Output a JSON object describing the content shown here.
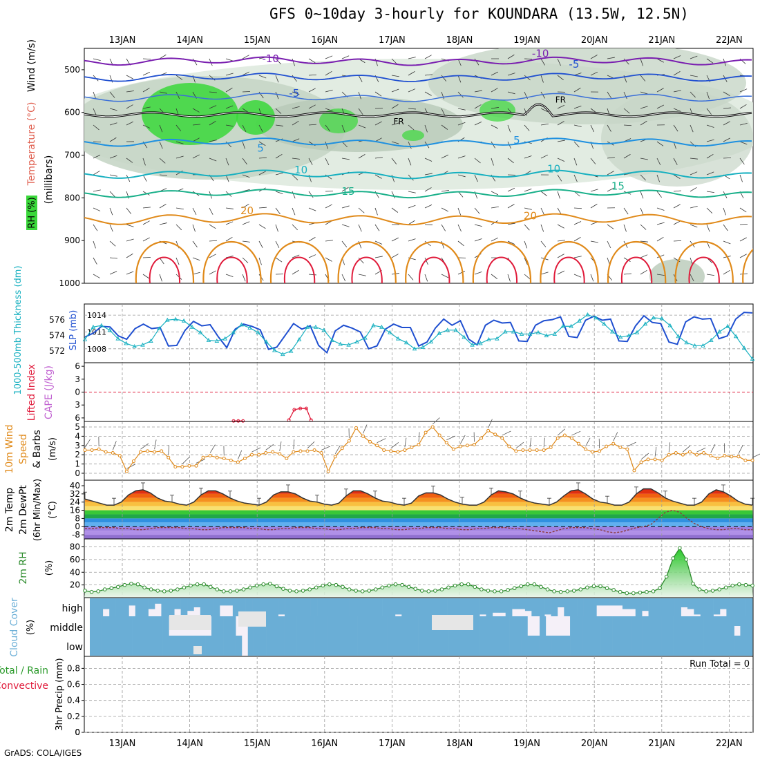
{
  "title": "GFS 0~10day 3-hourly for KOUNDARA (13.5W, 12.5N)",
  "footer": "GrADS: COLA/IGES",
  "colors": {
    "frame": "#000000",
    "grid": "#9a9a9a",
    "purple": "#7a1fb0",
    "blue": "#1f4fd0",
    "lightblue": "#1e90e0",
    "cyan": "#17b0c0",
    "teal": "#1ab08a",
    "orange": "#e08a1a",
    "red": "#e01a3a",
    "rh_green": "#3ad83a",
    "cloud": "#6aaed6",
    "cloud_none": "#f5f0f8"
  },
  "chart_data": [
    {
      "id": "upper_air",
      "type": "heatmap",
      "ylabel_parts": [
        "Temperature (°C)",
        "Wind (m/s)",
        "RH (%)"
      ],
      "ylabel_sub": "(millibars)",
      "x_dates": [
        "13JAN",
        "14JAN",
        "15JAN",
        "16JAN",
        "17JAN",
        "18JAN",
        "19JAN",
        "20JAN",
        "21JAN",
        "22JAN"
      ],
      "y_ticks": [
        500,
        600,
        700,
        800,
        900,
        1000
      ],
      "ylim": [
        450,
        1000
      ],
      "isotherm_labels": [
        {
          "label": "-10",
          "day": 2.2,
          "p": 482
        },
        {
          "label": "-10",
          "day": 6.2,
          "p": 470
        },
        {
          "label": "-5",
          "day": 2.55,
          "p": 563
        },
        {
          "label": "-5",
          "day": 6.7,
          "p": 495
        },
        {
          "label": "FR",
          "day": 4.1,
          "p": 628
        },
        {
          "label": "FR",
          "day": 6.5,
          "p": 577
        },
        {
          "label": "5",
          "day": 2.05,
          "p": 692
        },
        {
          "label": "5",
          "day": 5.85,
          "p": 673
        },
        {
          "label": "10",
          "day": 2.65,
          "p": 743
        },
        {
          "label": "10",
          "day": 6.4,
          "p": 740
        },
        {
          "label": "15",
          "day": 3.35,
          "p": 793
        },
        {
          "label": "15",
          "day": 7.35,
          "p": 781
        },
        {
          "label": "20",
          "day": 1.85,
          "p": 838
        },
        {
          "label": "20",
          "day": 6.05,
          "p": 850
        }
      ]
    },
    {
      "id": "slp_thickness",
      "type": "line",
      "ylabel_left": "1000-500mb Thickness (dm)",
      "ylabel_right": "SLP (mb)",
      "thickness_ticks": [
        572,
        574,
        576
      ],
      "slp_ticks": [
        1008,
        1011,
        1014
      ],
      "series": [
        {
          "name": "SLP (mb)",
          "values": [
            1010.1,
            1010.8,
            1012.0,
            1011.9,
            1010.3,
            1009.7,
            1011.6,
            1012.4,
            1011.6,
            1011.8,
            1008.5,
            1008.6,
            1011.3,
            1012.9,
            1012.1,
            1012.3,
            1010.1,
            1008.2,
            1011.5,
            1012.4,
            1012.0,
            1011.4,
            1007.9,
            1008.3,
            1010.4,
            1012.5,
            1011.5,
            1012.1,
            1008.6,
            1007.3,
            1011.2,
            1012.2,
            1011.7,
            1011.0,
            1008.0,
            1008.5,
            1011.5,
            1012.4,
            1011.8,
            1011.8,
            1008.5,
            1009.2,
            1011.7,
            1013.3,
            1012.2,
            1013.0,
            1009.7,
            1008.7,
            1012.2,
            1013.1,
            1012.6,
            1012.7,
            1009.4,
            1009.3,
            1012.2,
            1013.0,
            1013.2,
            1013.7,
            1010.2,
            1010.0,
            1013.1,
            1013.8,
            1013.1,
            1013.3,
            1009.4,
            1009.3,
            1012.1,
            1013.9,
            1012.7,
            1012.5,
            1009.2,
            1008.8,
            1012.8,
            1013.7,
            1013.3,
            1013.4,
            1009.8,
            1010.3,
            1013.3,
            1014.5,
            1014.4
          ]
        },
        {
          "name": "Thickness (dm)",
          "values": [
            573.5,
            575.1,
            575.3,
            574.7,
            573.6,
            573.0,
            572.6,
            572.8,
            573.3,
            574.9,
            576.0,
            576.1,
            575.9,
            575.1,
            574.4,
            573.4,
            573.3,
            573.6,
            574.4,
            575.4,
            575.0,
            574.4,
            573.2,
            572.1,
            571.6,
            572.0,
            573.5,
            575.1,
            575.1,
            574.7,
            573.4,
            572.9,
            572.8,
            573.2,
            573.7,
            575.3,
            575.1,
            574.4,
            573.6,
            573.1,
            572.3,
            572.5,
            573.2,
            574.3,
            574.7,
            574.7,
            573.8,
            572.8,
            573.0,
            573.5,
            573.6,
            574.5,
            574.5,
            574.2,
            574.2,
            574.4,
            574.0,
            574.2,
            575.2,
            575.2,
            575.9,
            576.7,
            576.3,
            575.5,
            574.5,
            573.8,
            574.0,
            574.4,
            575.5,
            576.3,
            576.2,
            575.3,
            573.9,
            573.1,
            572.7,
            572.7,
            573.4,
            574.5,
            575.2,
            573.9,
            572.4,
            571.0
          ]
        }
      ]
    },
    {
      "id": "instability",
      "type": "line",
      "ylabel_left": "Lifted Index",
      "ylabel_right": "CAPE (J/kg)",
      "ticks": [
        6,
        3,
        0,
        -3,
        -6
      ],
      "series": [
        {
          "name": "Lifted Index",
          "segments": [
            [
              [
                1.65,
                6.7
              ],
              [
                1.72,
                6.7
              ],
              [
                1.79,
                6.7
              ]
            ],
            [
              [
                2.47,
                6.5
              ],
              [
                2.55,
                4.1
              ],
              [
                2.64,
                3.8
              ],
              [
                2.73,
                3.8
              ],
              [
                2.8,
                6.5
              ]
            ]
          ]
        }
      ]
    },
    {
      "id": "wind10m",
      "type": "line",
      "ylabel_left": "10m Wind",
      "ylabel_mid": "Speed",
      "ylabel_right": "& Barbs",
      "ylabel_unit": "(m/s)",
      "y_ticks": [
        0,
        1,
        2,
        3,
        4,
        5
      ],
      "series": [
        {
          "name": "Speed (m/s)",
          "values": [
            2.5,
            2.5,
            2.6,
            2.3,
            2.2,
            1.9,
            0.2,
            1.3,
            2.3,
            2.4,
            2.3,
            2.4,
            1.7,
            0.7,
            0.7,
            0.8,
            0.8,
            1.7,
            1.9,
            1.7,
            1.6,
            1.4,
            1.2,
            1.6,
            2.0,
            2.0,
            2.2,
            2.3,
            2.1,
            1.6,
            2.3,
            2.4,
            2.4,
            2.5,
            2.2,
            0.2,
            1.8,
            2.7,
            3.5,
            4.9,
            4.0,
            3.4,
            3.0,
            2.5,
            2.4,
            2.3,
            2.5,
            2.8,
            3.1,
            4.4,
            5.0,
            4.1,
            3.3,
            2.6,
            2.9,
            3.0,
            3.1,
            3.8,
            4.6,
            4.2,
            3.8,
            2.9,
            2.4,
            2.5,
            2.5,
            2.5,
            2.5,
            2.8,
            3.8,
            4.1,
            3.8,
            3.2,
            2.6,
            2.3,
            2.4,
            2.9,
            3.2,
            2.8,
            2.6,
            0.3,
            1.2,
            1.5,
            1.5,
            1.4,
            2.0,
            2.2,
            2.0,
            2.3,
            2.0,
            2.2,
            1.9,
            1.6,
            1.9,
            1.8,
            1.8,
            1.4,
            1.4
          ]
        }
      ]
    },
    {
      "id": "temperature2m",
      "type": "area",
      "ylabel_parts": [
        "2m Temp",
        "2m DewPt",
        "(6hr Min/Max)"
      ],
      "ylabel_unit": "(°C)",
      "y_ticks": [
        -8,
        0,
        8,
        16,
        24,
        32,
        40
      ],
      "series": [
        {
          "name": "2m Temp",
          "values": [
            27,
            25,
            23,
            21,
            21,
            24,
            31,
            35,
            36,
            33,
            28,
            25,
            24,
            22,
            21,
            24,
            31,
            35,
            35,
            32,
            28,
            25,
            23,
            22,
            21,
            24,
            31,
            34,
            34,
            32,
            28,
            25,
            24,
            22,
            21,
            23,
            30,
            35,
            35,
            32,
            28,
            25,
            24,
            22,
            21,
            23,
            30,
            33,
            33,
            31,
            27,
            24,
            22,
            21,
            21,
            24,
            31,
            35,
            34,
            32,
            28,
            25,
            23,
            22,
            21,
            24,
            30,
            35,
            36,
            32,
            27,
            24,
            23,
            21,
            21,
            24,
            32,
            37,
            37,
            33,
            28,
            25,
            23,
            21,
            21,
            24,
            32,
            36,
            34,
            30,
            25,
            22,
            21
          ]
        },
        {
          "name": "2m DewPt",
          "values": [
            -2,
            -2,
            -1,
            -1,
            -1,
            -2,
            -2,
            -3,
            -3,
            -2,
            -1,
            -1,
            -1,
            -1,
            -2,
            -2,
            -3,
            -3,
            -2,
            -1,
            -1,
            -1,
            -1,
            -2,
            -2,
            -3,
            -3,
            -2,
            -2,
            -1,
            -1,
            -1,
            -2,
            -2,
            -3,
            -3,
            -2,
            -2,
            -1,
            -1,
            -1,
            -2,
            -2,
            -3,
            -3,
            -2,
            -2,
            -1,
            -1,
            -1,
            -2,
            -2,
            -3,
            -3,
            -2,
            -2,
            -1,
            -1,
            -1,
            -2,
            -2,
            -3,
            -4,
            -5,
            -6,
            -4,
            -2,
            -1,
            -1,
            -1,
            -2,
            -3,
            -5,
            -6,
            -5,
            -3,
            -1,
            0,
            2,
            8,
            14,
            16,
            14,
            8,
            3,
            0,
            -2,
            -3,
            -3,
            -2,
            -2,
            -3,
            -3
          ]
        }
      ]
    },
    {
      "id": "rh2m",
      "type": "area",
      "ylabel_left": "2m RH",
      "ylabel_unit": "(%)",
      "y_ticks": [
        20,
        40,
        60,
        80
      ],
      "series": [
        {
          "name": "2m RH (%)",
          "values": [
            11,
            9,
            10,
            13,
            15,
            17,
            20,
            22,
            21,
            16,
            13,
            11,
            10,
            11,
            13,
            16,
            19,
            21,
            21,
            17,
            13,
            10,
            10,
            11,
            13,
            16,
            19,
            21,
            22,
            18,
            14,
            11,
            10,
            11,
            13,
            16,
            19,
            21,
            20,
            17,
            13,
            11,
            10,
            11,
            13,
            16,
            19,
            21,
            20,
            17,
            14,
            11,
            10,
            11,
            13,
            16,
            19,
            21,
            21,
            17,
            13,
            11,
            10,
            10,
            12,
            15,
            18,
            21,
            21,
            17,
            13,
            10,
            9,
            10,
            11,
            13,
            16,
            18,
            18,
            15,
            12,
            9,
            7,
            7,
            8,
            9,
            10,
            15,
            33,
            62,
            78,
            60,
            22,
            13,
            10,
            11,
            13,
            16,
            19,
            21,
            20,
            19
          ]
        }
      ]
    },
    {
      "id": "cloud",
      "type": "heatmap",
      "ylabel_left": "Cloud Cover",
      "ylabel_unit": "(%)",
      "levels": [
        "high",
        "middle",
        "low"
      ],
      "high": [
        1,
        1,
        0.6,
        1,
        1,
        1,
        0.4,
        1,
        1,
        0.6,
        0.3,
        1,
        1,
        0.6,
        1,
        0.7,
        0.5,
        1,
        1,
        1,
        0.4,
        0.4,
        1,
        1,
        1,
        1,
        1,
        1,
        1,
        0.9,
        1,
        1,
        1,
        1,
        1,
        1,
        1,
        1,
        1,
        1,
        1,
        1,
        1,
        1,
        1,
        1,
        1,
        0.9,
        1,
        1,
        1,
        1,
        1,
        1,
        1,
        1,
        1,
        1,
        1,
        1,
        0.9,
        1,
        0.8,
        0.8,
        1,
        0.6,
        0.6,
        0.7,
        1,
        1,
        0.9,
        1,
        0.5,
        1,
        1,
        1,
        1,
        1,
        0.4,
        0.4,
        0.4,
        0.4,
        0.6,
        0.6,
        1,
        0.7,
        1,
        1,
        1,
        1,
        1,
        0.5,
        0.6,
        0.9,
        1,
        1,
        0.9,
        0.6,
        1,
        1,
        1,
        1
      ],
      "middle": [
        1,
        1,
        1,
        1,
        1,
        1,
        1,
        1,
        1,
        1,
        1,
        1,
        1,
        0,
        0,
        0,
        0,
        0,
        0,
        0,
        1,
        1,
        1,
        1,
        0,
        0,
        1,
        1,
        1,
        1,
        1,
        1,
        1,
        1,
        1,
        1,
        1,
        1,
        1,
        1,
        1,
        1,
        1,
        1,
        1,
        1,
        1,
        1,
        1,
        1,
        1,
        1,
        1,
        1,
        1,
        1,
        1,
        1,
        1,
        1,
        1,
        1,
        1,
        1,
        1,
        1,
        1,
        1,
        1,
        1,
        1,
        1,
        0,
        0,
        1,
        0,
        0,
        0,
        0,
        1,
        1,
        1,
        1,
        1,
        1,
        1,
        1,
        1,
        1,
        1,
        1,
        1,
        1,
        1,
        1,
        1,
        1,
        1,
        1,
        1,
        1,
        1,
        1,
        1,
        1,
        1,
        0.5,
        1,
        1
      ],
      "low": [
        1,
        1,
        1,
        1,
        1,
        1,
        1,
        1,
        1,
        1,
        1,
        1,
        1,
        1,
        1,
        1,
        1,
        1,
        1,
        1,
        1,
        1,
        1,
        1,
        1,
        0,
        1,
        1,
        1,
        1,
        1,
        1,
        1,
        1,
        1,
        1,
        1,
        1,
        1,
        1,
        1,
        1,
        1,
        1,
        1,
        1,
        1,
        1,
        1,
        1,
        1,
        1,
        1,
        1,
        1,
        1,
        1,
        1,
        1,
        1,
        1,
        1,
        1,
        1,
        1,
        1,
        1,
        1,
        1,
        1,
        1,
        1,
        1,
        1,
        1,
        1,
        1,
        1,
        1,
        1,
        1,
        1,
        1,
        1,
        1,
        1,
        1,
        1,
        1,
        1,
        1,
        1,
        1,
        1,
        1,
        1,
        1,
        1,
        1,
        1,
        1,
        1,
        1,
        1,
        1,
        1,
        1,
        1,
        1
      ]
    },
    {
      "id": "precip",
      "type": "bar",
      "ylabel_left": "Total / Rain",
      "ylabel_left2": "Convective",
      "ylabel_right": "3hr Precip (mm)",
      "y_ticks": [
        0,
        0.2,
        0.4,
        0.6,
        0.8
      ],
      "ylim": [
        0,
        0.95
      ],
      "run_total": "Run Total = 0",
      "values": []
    }
  ]
}
